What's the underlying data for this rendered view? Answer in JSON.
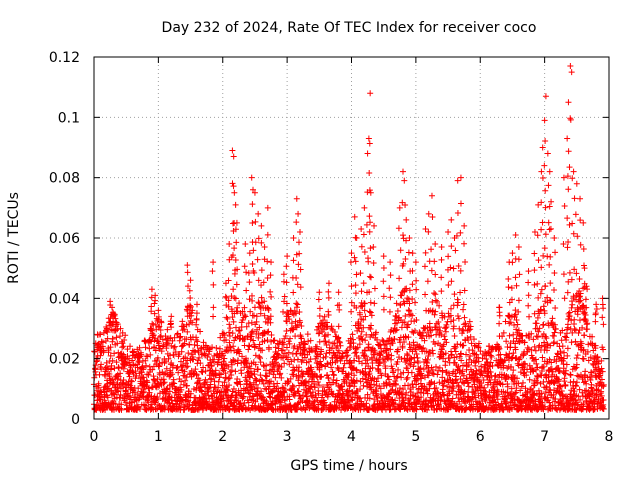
{
  "chart_data": {
    "type": "scatter",
    "title": "Day 232 of 2024, Rate Of TEC Index for receiver coco",
    "xlabel": "GPS time / hours",
    "ylabel": "ROTI / TECUs",
    "xlim": [
      0,
      8
    ],
    "ylim": [
      0,
      0.12
    ],
    "xticks": [
      0,
      1,
      2,
      3,
      4,
      5,
      6,
      7,
      8
    ],
    "yticks": [
      0,
      0.02,
      0.04,
      0.06,
      0.08,
      0.1,
      0.12
    ],
    "xtick_labels": [
      "0",
      "1",
      "2",
      "3",
      "4",
      "5",
      "6",
      "7",
      "8"
    ],
    "ytick_labels": [
      "0",
      "0.02",
      "0.04",
      "0.06",
      "0.08",
      "0.1",
      "0.12"
    ],
    "grid": true,
    "marker": "+",
    "color": "#ff0000",
    "series": [
      {
        "name": "ROTI",
        "note": "dense background cloud of points (0-8 h, mostly 0.003-0.03 TECUs) is generated procedurally from the band below",
        "band": {
          "x_start": 0.0,
          "x_end": 7.92,
          "x_step": 0.004,
          "y_min": 0.003,
          "y_max": 0.03,
          "seed": 232
        },
        "peaks": [
          {
            "x": 0.05,
            "y": 0.023
          },
          {
            "x": 0.1,
            "y": 0.021
          },
          {
            "x": 0.2,
            "y": 0.03
          },
          {
            "x": 0.25,
            "y": 0.039
          },
          {
            "x": 0.28,
            "y": 0.037
          },
          {
            "x": 0.3,
            "y": 0.035
          },
          {
            "x": 0.35,
            "y": 0.032
          },
          {
            "x": 0.9,
            "y": 0.043
          },
          {
            "x": 0.95,
            "y": 0.041
          },
          {
            "x": 1.0,
            "y": 0.036
          },
          {
            "x": 1.2,
            "y": 0.034
          },
          {
            "x": 1.45,
            "y": 0.051
          },
          {
            "x": 1.5,
            "y": 0.046
          },
          {
            "x": 1.6,
            "y": 0.038
          },
          {
            "x": 1.85,
            "y": 0.052
          },
          {
            "x": 2.05,
            "y": 0.045
          },
          {
            "x": 2.1,
            "y": 0.058
          },
          {
            "x": 2.15,
            "y": 0.089
          },
          {
            "x": 2.17,
            "y": 0.087
          },
          {
            "x": 2.18,
            "y": 0.075
          },
          {
            "x": 2.2,
            "y": 0.071
          },
          {
            "x": 2.22,
            "y": 0.065
          },
          {
            "x": 2.35,
            "y": 0.058
          },
          {
            "x": 2.42,
            "y": 0.055
          },
          {
            "x": 2.45,
            "y": 0.08
          },
          {
            "x": 2.47,
            "y": 0.076
          },
          {
            "x": 2.5,
            "y": 0.075
          },
          {
            "x": 2.55,
            "y": 0.068
          },
          {
            "x": 2.6,
            "y": 0.064
          },
          {
            "x": 2.65,
            "y": 0.057
          },
          {
            "x": 2.7,
            "y": 0.07
          },
          {
            "x": 2.75,
            "y": 0.052
          },
          {
            "x": 2.95,
            "y": 0.048
          },
          {
            "x": 3.0,
            "y": 0.054
          },
          {
            "x": 3.1,
            "y": 0.06
          },
          {
            "x": 3.15,
            "y": 0.073
          },
          {
            "x": 3.17,
            "y": 0.068
          },
          {
            "x": 3.2,
            "y": 0.062
          },
          {
            "x": 3.5,
            "y": 0.042
          },
          {
            "x": 3.65,
            "y": 0.045
          },
          {
            "x": 3.8,
            "y": 0.042
          },
          {
            "x": 4.0,
            "y": 0.055
          },
          {
            "x": 4.05,
            "y": 0.067
          },
          {
            "x": 4.08,
            "y": 0.06
          },
          {
            "x": 4.15,
            "y": 0.063
          },
          {
            "x": 4.2,
            "y": 0.07
          },
          {
            "x": 4.25,
            "y": 0.088
          },
          {
            "x": 4.27,
            "y": 0.093
          },
          {
            "x": 4.29,
            "y": 0.108
          },
          {
            "x": 4.3,
            "y": 0.075
          },
          {
            "x": 4.35,
            "y": 0.064
          },
          {
            "x": 4.5,
            "y": 0.054
          },
          {
            "x": 4.6,
            "y": 0.052
          },
          {
            "x": 4.75,
            "y": 0.07
          },
          {
            "x": 4.8,
            "y": 0.082
          },
          {
            "x": 4.82,
            "y": 0.079
          },
          {
            "x": 4.85,
            "y": 0.066
          },
          {
            "x": 4.9,
            "y": 0.06
          },
          {
            "x": 4.95,
            "y": 0.055
          },
          {
            "x": 5.0,
            "y": 0.052
          },
          {
            "x": 5.15,
            "y": 0.063
          },
          {
            "x": 5.2,
            "y": 0.068
          },
          {
            "x": 5.25,
            "y": 0.074
          },
          {
            "x": 5.3,
            "y": 0.058
          },
          {
            "x": 5.4,
            "y": 0.057
          },
          {
            "x": 5.5,
            "y": 0.062
          },
          {
            "x": 5.55,
            "y": 0.066
          },
          {
            "x": 5.6,
            "y": 0.06
          },
          {
            "x": 5.65,
            "y": 0.079
          },
          {
            "x": 5.7,
            "y": 0.08
          },
          {
            "x": 5.75,
            "y": 0.064
          },
          {
            "x": 6.3,
            "y": 0.037
          },
          {
            "x": 6.45,
            "y": 0.052
          },
          {
            "x": 6.5,
            "y": 0.055
          },
          {
            "x": 6.55,
            "y": 0.061
          },
          {
            "x": 6.6,
            "y": 0.057
          },
          {
            "x": 6.75,
            "y": 0.049
          },
          {
            "x": 6.85,
            "y": 0.062
          },
          {
            "x": 6.9,
            "y": 0.071
          },
          {
            "x": 6.95,
            "y": 0.082
          },
          {
            "x": 6.97,
            "y": 0.09
          },
          {
            "x": 7.0,
            "y": 0.099
          },
          {
            "x": 7.02,
            "y": 0.107
          },
          {
            "x": 7.05,
            "y": 0.088
          },
          {
            "x": 7.08,
            "y": 0.082
          },
          {
            "x": 7.1,
            "y": 0.072
          },
          {
            "x": 7.15,
            "y": 0.06
          },
          {
            "x": 7.3,
            "y": 0.08
          },
          {
            "x": 7.35,
            "y": 0.093
          },
          {
            "x": 7.37,
            "y": 0.105
          },
          {
            "x": 7.4,
            "y": 0.117
          },
          {
            "x": 7.42,
            "y": 0.115
          },
          {
            "x": 7.45,
            "y": 0.082
          },
          {
            "x": 7.5,
            "y": 0.078
          },
          {
            "x": 7.55,
            "y": 0.073
          },
          {
            "x": 7.6,
            "y": 0.065
          },
          {
            "x": 7.62,
            "y": 0.05
          },
          {
            "x": 7.65,
            "y": 0.044
          },
          {
            "x": 7.8,
            "y": 0.038
          },
          {
            "x": 7.9,
            "y": 0.04
          }
        ]
      }
    ]
  }
}
